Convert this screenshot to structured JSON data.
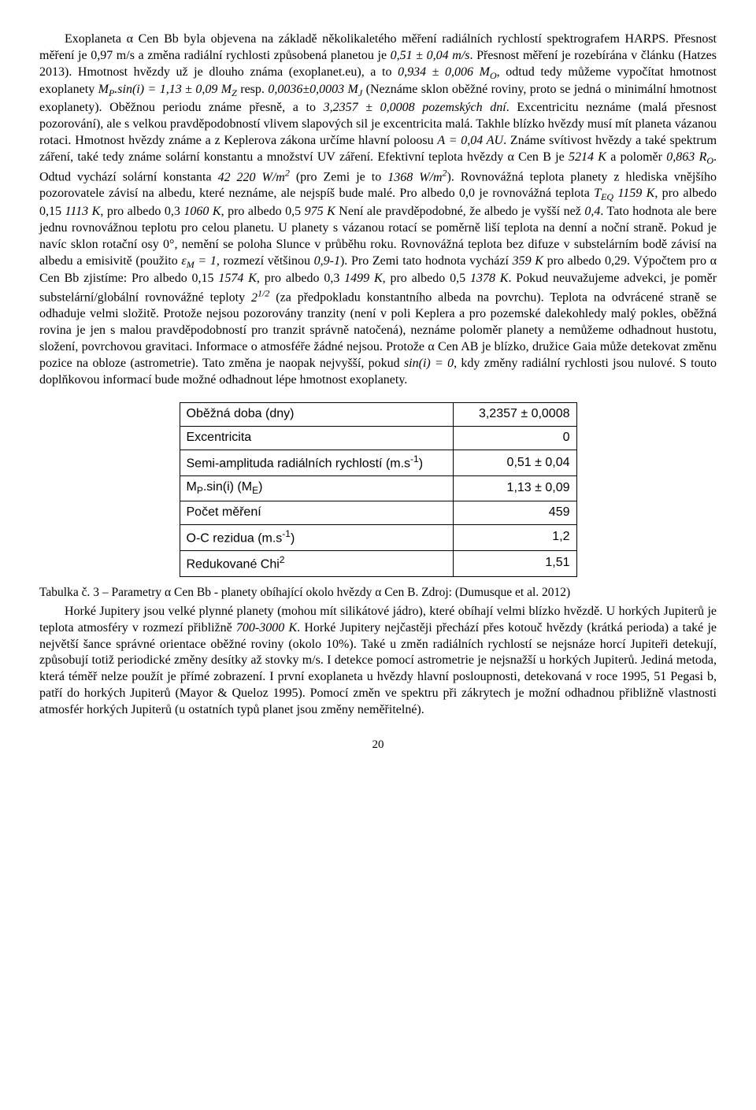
{
  "paragraph1_prefix": "Exoplaneta α Cen Bb byla objevena na základě několikaletého měření radiálních rychlostí spektrografem HARPS. Přesnost měření je 0,97 m/s a změna radiální rychlosti způsobená planetou je ",
  "val_051004": "0,51 ± 0,04 m/s",
  "p1_a": ". Přesnost měření je rozebírána v článku (Hatzes 2013). Hmotnost hvězdy už je dlouho známa (exoplanet.eu), a to ",
  "val_0934": "0,934 ± 0,006 M",
  "p1_b": ", odtud tedy můžeme vypočítat hmotnost exoplanety ",
  "val_mpsin": "M",
  "val_mpsin2": ".sin(i) = 1,13 ± 0,09 M",
  "p1_c": " resp. ",
  "val_00036": "0,0036±0,0003 M",
  "p1_d": " (Neznáme sklon oběžné roviny, proto se jedná o minimální hmotnost exoplanety). Oběžnou periodu známe přesně, a to ",
  "val_period": "3,2357 ± 0,0008 pozemských dní",
  "p1_e": ". Excentricitu neznáme (malá přesnost pozorování), ale s velkou pravděpodobností vlivem slapových sil je excentricita malá. Takhle blízko hvězdy musí mít planeta vázanou rotaci. Hmotnost hvězdy známe a z Keplerova zákona určíme hlavní poloosu ",
  "val_au": "A = 0,04 AU",
  "p1_f": ". Známe svítivost hvězdy a také spektrum záření, také tedy známe solární konstantu a množství UV záření. Efektivní teplota hvězdy α Cen B je ",
  "val_5214": "5214 K",
  "p1_g": " a poloměr ",
  "val_radius": "0,863 R",
  "p1_h": ". Odtud vychází solární konstanta ",
  "val_solar": "42 220 W/m",
  "p1_h2": " (pro Zemi je to ",
  "val_solar_earth": "1368 W/m",
  "p1_i": "). Rovnovážná teplota planety z hlediska vnějšího pozorovatele závisí na albedu, které neznáme, ale nejspíš bude malé. Pro albedo 0,0 je rovnovážná teplota ",
  "val_teq": "T",
  "val_1159": " 1159 K",
  "p1_j": ", pro albedo 0,15 ",
  "val_1113": "1113 K",
  "p1_k": ", pro albedo 0,3 ",
  "val_1060": "1060 K",
  "p1_l": ", pro albedo 0,5 ",
  "val_975": "975 K",
  "p1_m": " Není ale pravděpodobné, že albedo je vyšší než ",
  "val_04": "0,4",
  "p1_n": ". Tato hodnota ale bere jednu rovnovážnou teplotu pro celou planetu. U planety s vázanou rotací se poměrně liší teplota na denní a noční straně. Pokud je navíc sklon rotační osy 0°, nemění se poloha Slunce v průběhu roku. Rovnovážná teplota bez difuze v substelárním bodě závisí na albedu a emisivitě (použito ",
  "val_eps": "ε",
  "val_eps2": " = 1",
  "p1_o": ", rozmezí většinou ",
  "val_0901": "0,9-1",
  "p1_p": "). Pro Zemi tato hodnota vychází ",
  "val_359": "359 K",
  "p1_q": " pro albedo 0,29. Výpočtem pro  α Cen Bb zjistíme: Pro albedo 0,15 ",
  "val_1574": "1574 K",
  "p1_r": ", pro albedo 0,3 ",
  "val_1499": "1499 K",
  "p1_s": ", pro albedo 0,5 ",
  "val_1378": "1378 K",
  "p1_t": ". Pokud neuvažujeme advekci, je poměr substelární/globální rovnovážné teploty ",
  "val_2half": "2",
  "p1_u": " (za předpokladu konstantního albeda na povrchu). Teplota na odvrácené straně se odhaduje velmi složitě. Protože nejsou pozorovány tranzity (není v poli Keplera a pro pozemské dalekohledy malý pokles, oběžná rovina je jen s malou pravděpodobností pro tranzit správně natočená), neznáme poloměr planety a nemůžeme odhadnout hustotu, složení, povrchovou gravitaci. Informace o atmosféře žádné nejsou. Protože α Cen AB je blízko, družice Gaia může detekovat změnu pozice na obloze (astrometrie). Tato změna je naopak nejvyšší, pokud ",
  "val_sini0": "sin(i) = 0",
  "p1_v": ", kdy změny radiální rychlosti jsou nulové. S touto doplňkovou informací bude možné odhadnout lépe hmotnost exoplanety.",
  "table": {
    "rows": [
      {
        "label": "Oběžná doba (dny)",
        "value": "3,2357 ± 0,0008"
      },
      {
        "label": "Excentricita",
        "value": "0"
      },
      {
        "label_prefix": "Semi-amplituda radiálních rychlostí (m.s",
        "label_sup": "-1",
        "label_suffix": ")",
        "value": "0,51 ± 0,04"
      },
      {
        "label_prefix": "M",
        "label_sub1": "P",
        "label_mid": ".sin(i) (M",
        "label_sub2": "E",
        "label_suffix2": ")",
        "value": "1,13 ± 0,09"
      },
      {
        "label": "Počet měření",
        "value": "459"
      },
      {
        "label_prefix": "O-C rezidua (m.s",
        "label_sup": "-1",
        "label_suffix": ")",
        "value": "1,2"
      },
      {
        "label_prefix": "Redukované Chi",
        "label_sup": "2",
        "label_suffix": "",
        "value": "1,51"
      }
    ]
  },
  "caption": "Tabulka č. 3 – Parametry  α Cen Bb - planety obíhající okolo hvězdy  α Cen B. Zdroj: (Dumusque et al. 2012)",
  "p2_a": "Horké Jupitery jsou velké plynné planety (mohou mít silikátové jádro), které obíhají velmi blízko hvězdě. U horkých Jupiterů je teplota atmosféry v rozmezí přibližně ",
  "val_700_3000": "700-3000 K",
  "p2_b": ". Horké Jupitery nejčastěji přechází přes kotouč hvězdy (krátká perioda) a také je největší šance správné orientace oběžné roviny (okolo 10%).  Také u změn radiálních rychlostí se nejsnáze horcí Jupiteři detekují, způsobují totiž periodické změny desítky až stovky m/s. I detekce pomocí astrometrie je nejsnažší u horkých Jupiterů. Jediná metoda, která téměř nelze použít je přímé zobrazení. I první exoplaneta u hvězdy hlavní posloupnosti, detekovaná v roce 1995, 51 Pegasi b, patří do horkých Jupiterů (Mayor & Queloz 1995). Pomocí změn ve spektru při zákrytech je možní odhadnou přibližně vlastnosti atmosfér horkých Jupiterů (u ostatních typů planet jsou změny neměřitelné).",
  "pagenum": "20"
}
